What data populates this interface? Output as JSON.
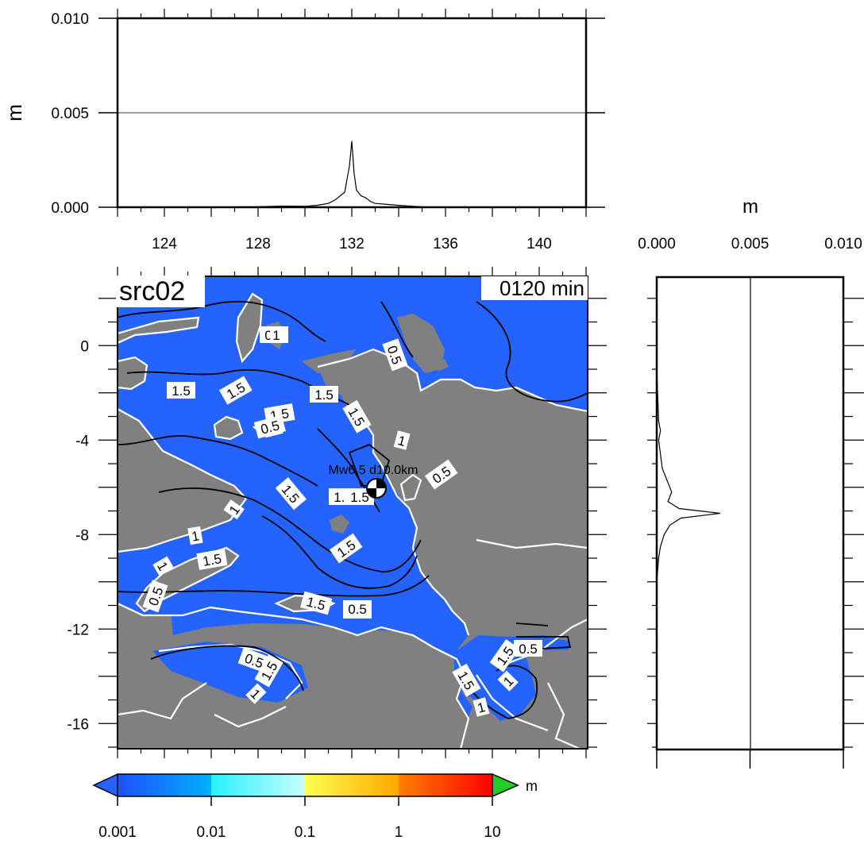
{
  "map": {
    "run_label": "src02",
    "time_label": "0120 min",
    "source_label": "Mw6.5 d10.0km",
    "ocean_color": "#2563ff",
    "land_color": "#808080",
    "coast_color": "#ffffff",
    "x_ticks": [
      "124",
      "128",
      "132",
      "136",
      "140"
    ],
    "y_ticks": [
      "0",
      "-4",
      "-8",
      "-12",
      "-16"
    ],
    "contour_labels": [
      "0.5",
      "1.5",
      "1.5",
      "1.5",
      "0.5",
      "1.5",
      "0.5",
      "1.5",
      "1",
      "0.5",
      "1.5",
      "1.5",
      "1.5",
      "1",
      "1",
      "1.5",
      "1.5",
      "1",
      "0.5",
      "1.5",
      "1.5",
      "0.5",
      "1.5",
      "1",
      "1.5",
      "0.5",
      "1.5",
      "1",
      "1",
      "1",
      "0.5"
    ]
  },
  "top_panel": {
    "ylabel": "m",
    "y_ticks": [
      "0.010",
      "0.005",
      "0.000"
    ]
  },
  "side_panel": {
    "xlabel": "m",
    "x_ticks": [
      "0.000",
      "0.005",
      "0.010"
    ]
  },
  "colorbar": {
    "unit": "m",
    "ticks": [
      "0.001",
      "0.01",
      "0.1",
      "1",
      "10"
    ]
  },
  "chart_data": [
    {
      "type": "line",
      "title": "",
      "xlabel": "",
      "ylabel": "m",
      "xlim": [
        122,
        142
      ],
      "ylim": [
        0,
        0.01
      ],
      "x_ticks": [
        124,
        128,
        132,
        136,
        140
      ],
      "y_ticks": [
        0,
        0.005,
        0.01
      ],
      "grid": false,
      "series": [
        {
          "x": [
            122,
            126,
            128,
            129,
            130,
            130.5,
            131,
            131.3,
            131.5,
            131.7,
            131.8,
            131.9,
            132.0,
            132.1,
            132.2,
            132.4,
            132.6,
            132.8,
            133.0,
            133.5,
            134.0,
            134.5,
            135.0,
            136,
            142
          ],
          "y": [
            0,
            1e-05,
            3e-05,
            6e-05,
            5e-05,
            0.0001,
            0.0002,
            0.0004,
            0.0006,
            0.0008,
            0.0015,
            0.0022,
            0.0035,
            0.0018,
            0.0009,
            0.0006,
            0.0005,
            0.0003,
            0.0002,
            0.00015,
            0.0001,
            6e-05,
            2e-05,
            1e-05,
            0
          ]
        }
      ]
    },
    {
      "type": "line",
      "title": "",
      "xlabel": "m",
      "ylabel": "",
      "xlim": [
        0,
        0.01
      ],
      "ylim": [
        -17.1,
        2.9
      ],
      "x_ticks": [
        0,
        0.005,
        0.01
      ],
      "grid": false,
      "series": [
        {
          "y": [
            2.9,
            -1.0,
            -3.2,
            -3.6,
            -4.0,
            -4.6,
            -5.2,
            -5.8,
            -6.2,
            -6.6,
            -6.9,
            -7.1,
            -7.3,
            -7.6,
            -8.0,
            -8.5,
            -9.0,
            -10,
            -17.1
          ],
          "x": [
            0,
            0,
            0.0001,
            0.0002,
            0.0001,
            0.0002,
            0.0003,
            0.0006,
            0.0008,
            0.0006,
            0.0012,
            0.0034,
            0.0013,
            0.0007,
            0.0004,
            0.0002,
            0.0001,
            0,
            0
          ]
        }
      ]
    },
    {
      "type": "heatmap",
      "title": "",
      "xlabel": "",
      "ylabel": "",
      "xlim": [
        122,
        142
      ],
      "ylim": [
        -17.1,
        2.9
      ],
      "x_ticks": [
        124,
        128,
        132,
        136,
        140
      ],
      "y_ticks": [
        0,
        -4,
        -8,
        -12,
        -16
      ],
      "colorbar_levels": [
        0.001,
        0.01,
        0.1,
        1,
        10
      ],
      "colorbar_unit": "m"
    }
  ]
}
